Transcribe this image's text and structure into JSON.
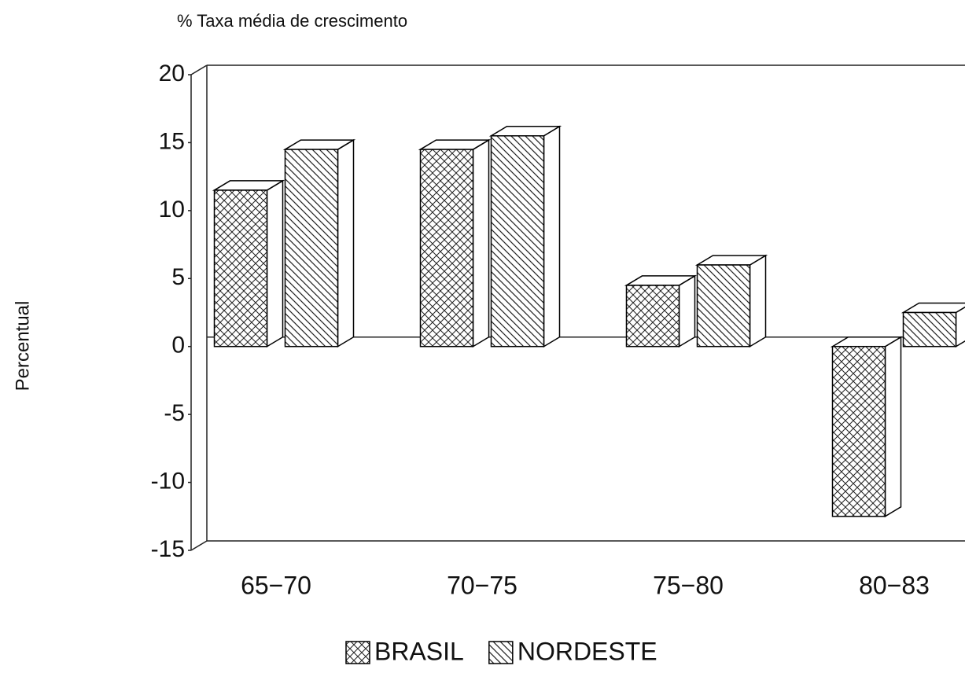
{
  "chart_data": {
    "type": "bar3d",
    "title": "% Taxa média de crescimento",
    "y_label": "Percentual",
    "categories": [
      "65−70",
      "70−75",
      "75−80",
      "80−83"
    ],
    "series": [
      {
        "name": "BRASIL",
        "color": "#000000",
        "pattern": "crosshatch",
        "values": [
          11.5,
          14.5,
          4.5,
          -12.5
        ]
      },
      {
        "name": "NORDESTE",
        "color": "#000000",
        "pattern": "diagonal",
        "values": [
          14.5,
          15.5,
          6,
          2.5
        ]
      }
    ],
    "ylim": [
      -15,
      20
    ],
    "yticks": [
      -15,
      -10,
      -5,
      0,
      5,
      10,
      15,
      20
    ],
    "legend": "bottom"
  }
}
